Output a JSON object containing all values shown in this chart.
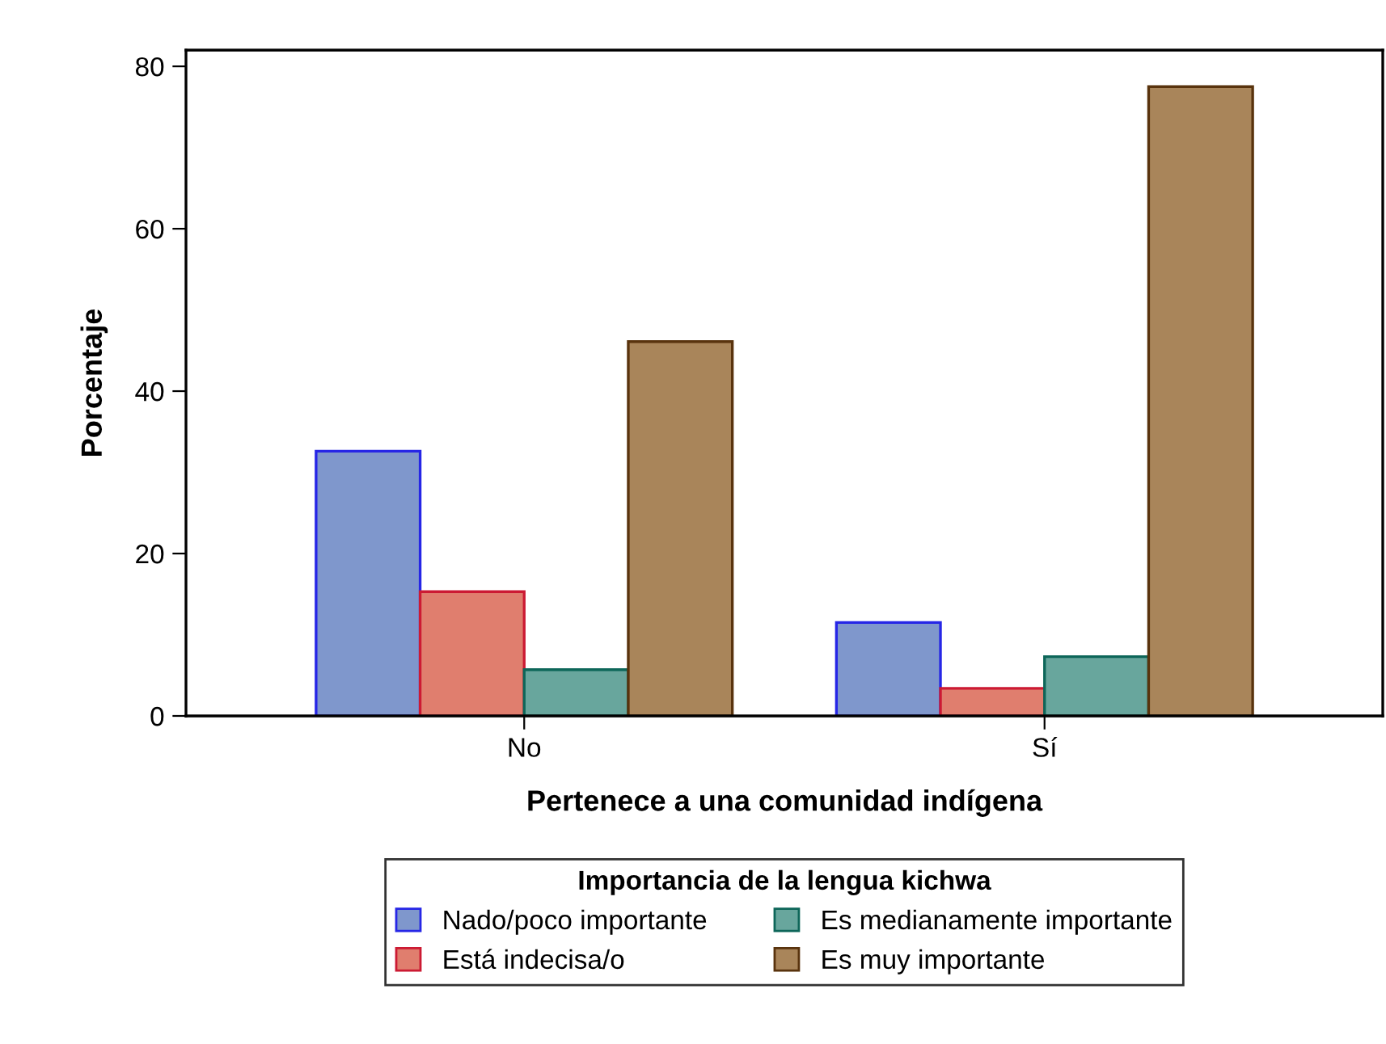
{
  "chart_data": {
    "type": "bar",
    "xlabel": "Pertenece a una comunidad indígena",
    "ylabel": "Porcentaje",
    "legend_title": "Importancia de la lengua kichwa",
    "categories": [
      "No",
      "Sí"
    ],
    "series": [
      {
        "name": "Nado/poco importante",
        "color": "#7f97cc",
        "values": [
          32.6,
          11.5
        ]
      },
      {
        "name": "Está indecisa/o",
        "color": "#e07e6e",
        "values": [
          15.3,
          3.4
        ]
      },
      {
        "name": "Es medianamente importante",
        "color": "#68a69d",
        "values": [
          5.7,
          7.3
        ]
      },
      {
        "name": "Es muy importante",
        "color": "#a9855a",
        "values": [
          46.1,
          77.5
        ]
      }
    ],
    "ylim": [
      0,
      82
    ],
    "yticks": [
      0,
      20,
      40,
      60,
      80
    ],
    "grid": false,
    "legend": "bottom"
  }
}
